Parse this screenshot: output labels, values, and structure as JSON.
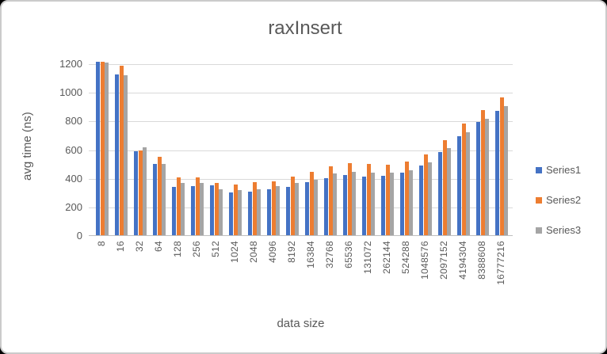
{
  "window": {
    "background": "#000000",
    "card_background": "#ffffff",
    "card_border": "#cbcbcb"
  },
  "chart_data": {
    "type": "bar",
    "title": "raxInsert",
    "xlabel": "data size",
    "ylabel": "avg time (ns)",
    "categories": [
      "8",
      "16",
      "32",
      "64",
      "128",
      "256",
      "512",
      "1024",
      "2048",
      "4096",
      "8192",
      "16384",
      "32768",
      "65536",
      "131072",
      "262144",
      "524288",
      "1048576",
      "2097152",
      "4194304",
      "8388608",
      "16777216"
    ],
    "series": [
      {
        "name": "Series1",
        "color": "#4472C4",
        "values": [
          1210,
          1125,
          585,
          500,
          340,
          345,
          350,
          300,
          305,
          320,
          335,
          370,
          400,
          420,
          410,
          415,
          435,
          485,
          580,
          690,
          790,
          870
        ]
      },
      {
        "name": "Series2",
        "color": "#ED7D31",
        "values": [
          1210,
          1185,
          590,
          550,
          405,
          405,
          365,
          355,
          370,
          375,
          410,
          445,
          480,
          505,
          500,
          495,
          515,
          565,
          665,
          780,
          875,
          965
        ]
      },
      {
        "name": "Series3",
        "color": "#A5A5A5",
        "values": [
          1205,
          1120,
          615,
          500,
          365,
          365,
          320,
          315,
          320,
          345,
          365,
          385,
          430,
          445,
          435,
          435,
          455,
          510,
          610,
          720,
          815,
          900
        ]
      }
    ],
    "y_ticks": [
      "0",
      "200",
      "400",
      "600",
      "800",
      "1000",
      "1200"
    ],
    "ylim": [
      0,
      1250
    ],
    "grid": true,
    "legend_position": "right",
    "gridline_color": "#d9d9d9",
    "axis_line_color": "#bfbfbf",
    "text_color": "#595959"
  }
}
